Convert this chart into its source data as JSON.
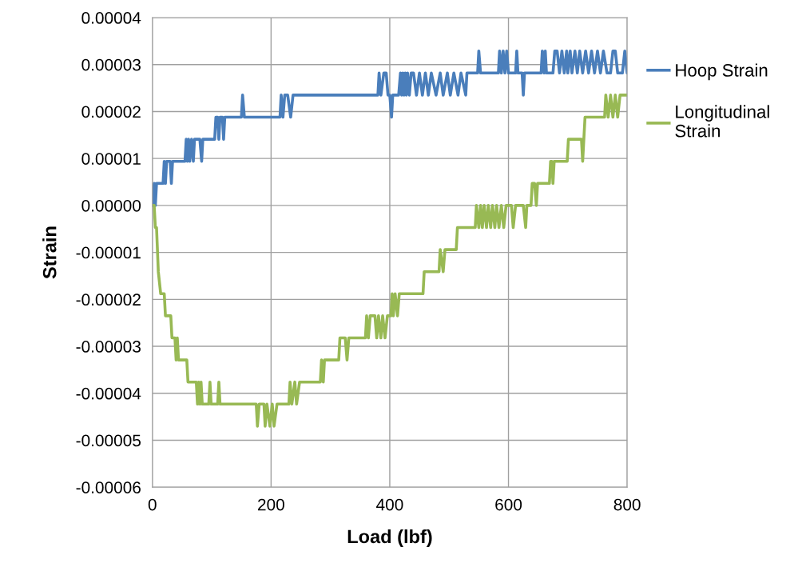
{
  "chart_data": {
    "type": "line",
    "xlabel": "Load (lbf)",
    "ylabel": "Strain",
    "xlim": [
      0,
      800
    ],
    "xticks": [
      0,
      200,
      400,
      600,
      800
    ],
    "ylim": [
      -6e-05,
      4e-05
    ],
    "yticks": [
      {
        "value": -6e-05,
        "label": "-0.00006"
      },
      {
        "value": -5e-05,
        "label": "-0.00005"
      },
      {
        "value": -4e-05,
        "label": "-0.00004"
      },
      {
        "value": -3e-05,
        "label": "-0.00003"
      },
      {
        "value": -2e-05,
        "label": "-0.00002"
      },
      {
        "value": -1e-05,
        "label": "-0.00001"
      },
      {
        "value": 0,
        "label": "0.00000"
      },
      {
        "value": 1e-05,
        "label": "0.00001"
      },
      {
        "value": 2e-05,
        "label": "0.00002"
      },
      {
        "value": 3e-05,
        "label": "0.00003"
      },
      {
        "value": 4e-05,
        "label": "0.00004"
      }
    ],
    "grid": true,
    "legend": "right",
    "marker": "none",
    "line_style": "solid",
    "series": [
      {
        "name": "Hoop Strain",
        "color": "#4a7ebb",
        "x": [
          0,
          3,
          5,
          7,
          18,
          20,
          22,
          24,
          30,
          32,
          34,
          55,
          57,
          59,
          61,
          63,
          66,
          69,
          71,
          80,
          83,
          85,
          105,
          107,
          110,
          112,
          114,
          118,
          120,
          122,
          150,
          152,
          155,
          215,
          217,
          220,
          223,
          228,
          233,
          237,
          380,
          382,
          385,
          390,
          394,
          397,
          400,
          403,
          405,
          415,
          418,
          420,
          422,
          424,
          426,
          428,
          430,
          433,
          436,
          440,
          445,
          450,
          455,
          460,
          465,
          470,
          478,
          485,
          490,
          497,
          502,
          508,
          515,
          520,
          528,
          530,
          548,
          550,
          553,
          583,
          585,
          588,
          591,
          594,
          597,
          600,
          612,
          614,
          616,
          623,
          625,
          627,
          655,
          657,
          660,
          662,
          664,
          675,
          678,
          682,
          686,
          690,
          694,
          698,
          700,
          704,
          707,
          712,
          716,
          720,
          725,
          730,
          735,
          740,
          745,
          750,
          755,
          760,
          766,
          772,
          776,
          780,
          784,
          792,
          796,
          800
        ],
        "values": [
          0,
          4.7e-06,
          0,
          4.7e-06,
          4.7e-06,
          9.4e-06,
          4.7e-06,
          9.4e-06,
          9.4e-06,
          4.7e-06,
          9.4e-06,
          9.4e-06,
          1.41e-05,
          9.4e-06,
          1.41e-05,
          9.4e-06,
          1.41e-05,
          9.4e-06,
          1.41e-05,
          1.41e-05,
          9.4e-06,
          1.41e-05,
          1.41e-05,
          1.88e-05,
          1.88e-05,
          1.41e-05,
          1.88e-05,
          1.88e-05,
          1.41e-05,
          1.88e-05,
          1.88e-05,
          2.35e-05,
          1.88e-05,
          1.88e-05,
          2.35e-05,
          1.88e-05,
          2.35e-05,
          2.35e-05,
          1.88e-05,
          2.35e-05,
          2.35e-05,
          2.82e-05,
          2.35e-05,
          2.82e-05,
          2.82e-05,
          2.35e-05,
          2.35e-05,
          1.88e-05,
          2.35e-05,
          2.35e-05,
          2.82e-05,
          2.35e-05,
          2.82e-05,
          2.35e-05,
          2.82e-05,
          2.35e-05,
          2.82e-05,
          2.35e-05,
          2.82e-05,
          2.82e-05,
          2.35e-05,
          2.82e-05,
          2.35e-05,
          2.82e-05,
          2.35e-05,
          2.82e-05,
          2.35e-05,
          2.82e-05,
          2.35e-05,
          2.82e-05,
          2.35e-05,
          2.82e-05,
          2.35e-05,
          2.82e-05,
          2.35e-05,
          2.82e-05,
          2.82e-05,
          3.29e-05,
          2.82e-05,
          2.82e-05,
          3.29e-05,
          2.82e-05,
          3.29e-05,
          2.82e-05,
          3.29e-05,
          2.82e-05,
          2.82e-05,
          3.29e-05,
          2.82e-05,
          2.82e-05,
          2.35e-05,
          2.82e-05,
          2.82e-05,
          3.29e-05,
          2.82e-05,
          3.29e-05,
          2.82e-05,
          2.82e-05,
          3.29e-05,
          3.29e-05,
          2.82e-05,
          3.29e-05,
          2.82e-05,
          3.29e-05,
          2.82e-05,
          3.29e-05,
          2.82e-05,
          3.29e-05,
          2.82e-05,
          3.29e-05,
          2.82e-05,
          3.29e-05,
          2.82e-05,
          3.29e-05,
          2.82e-05,
          3.29e-05,
          2.82e-05,
          3.29e-05,
          2.82e-05,
          2.82e-05,
          3.29e-05,
          3.29e-05,
          2.82e-05,
          2.82e-05,
          3.29e-05,
          2.82e-05
        ]
      },
      {
        "name": "Longitudinal\nStrain",
        "color": "#98b954",
        "x": [
          0,
          3,
          5,
          7,
          10,
          14,
          20,
          22,
          31,
          33,
          38,
          40,
          42,
          44,
          58,
          60,
          74,
          76,
          78,
          80,
          82,
          84,
          95,
          97,
          99,
          110,
          112,
          114,
          175,
          177,
          180,
          188,
          190,
          193,
          198,
          202,
          205,
          210,
          230,
          232,
          235,
          240,
          243,
          248,
          283,
          285,
          288,
          290,
          314,
          316,
          325,
          328,
          331,
          359,
          361,
          364,
          367,
          375,
          378,
          381,
          385,
          388,
          392,
          396,
          402,
          404,
          406,
          409,
          413,
          416,
          456,
          458,
          483,
          485,
          490,
          493,
          512,
          514,
          544,
          546,
          550,
          553,
          556,
          559,
          563,
          566,
          570,
          573,
          577,
          580,
          584,
          588,
          592,
          596,
          605,
          608,
          612,
          625,
          629,
          631,
          638,
          640,
          644,
          647,
          649,
          669,
          671,
          673,
          675,
          677,
          699,
          701,
          723,
          725,
          727,
          729,
          762,
          764,
          768,
          772,
          776,
          780,
          784,
          788,
          800
        ],
        "values": [
          0,
          0,
          -4.7e-06,
          -4.7e-06,
          -1.41e-05,
          -1.88e-05,
          -1.88e-05,
          -2.35e-05,
          -2.35e-05,
          -2.82e-05,
          -2.82e-05,
          -3.29e-05,
          -2.82e-05,
          -3.29e-05,
          -3.29e-05,
          -3.76e-05,
          -3.76e-05,
          -4.23e-05,
          -3.76e-05,
          -4.23e-05,
          -3.76e-05,
          -4.23e-05,
          -4.23e-05,
          -3.76e-05,
          -4.23e-05,
          -4.23e-05,
          -3.76e-05,
          -4.23e-05,
          -4.23e-05,
          -4.7e-05,
          -4.23e-05,
          -4.23e-05,
          -4.7e-05,
          -4.23e-05,
          -4.7e-05,
          -4.23e-05,
          -4.7e-05,
          -4.23e-05,
          -4.23e-05,
          -3.76e-05,
          -4.23e-05,
          -3.76e-05,
          -4.23e-05,
          -3.76e-05,
          -3.76e-05,
          -3.29e-05,
          -3.76e-05,
          -3.29e-05,
          -3.29e-05,
          -2.82e-05,
          -2.82e-05,
          -3.29e-05,
          -2.82e-05,
          -2.82e-05,
          -2.35e-05,
          -2.82e-05,
          -2.35e-05,
          -2.35e-05,
          -2.82e-05,
          -2.35e-05,
          -2.82e-05,
          -2.35e-05,
          -2.82e-05,
          -2.35e-05,
          -2.35e-05,
          -1.88e-05,
          -2.35e-05,
          -1.88e-05,
          -2.35e-05,
          -1.88e-05,
          -1.88e-05,
          -1.41e-05,
          -1.41e-05,
          -9.4e-06,
          -1.41e-05,
          -9.4e-06,
          -9.4e-06,
          -4.7e-06,
          -4.7e-06,
          0,
          -4.7e-06,
          0,
          -4.7e-06,
          0,
          -4.7e-06,
          0,
          -4.7e-06,
          0,
          -4.7e-06,
          0,
          -4.7e-06,
          0,
          -4.7e-06,
          0,
          0,
          -4.7e-06,
          0,
          0,
          -4.7e-06,
          0,
          0,
          4.7e-06,
          4.7e-06,
          0,
          4.7e-06,
          4.7e-06,
          9.4e-06,
          9.4e-06,
          4.7e-06,
          9.4e-06,
          9.4e-06,
          1.41e-05,
          1.41e-05,
          9.4e-06,
          1.41e-05,
          1.88e-05,
          1.88e-05,
          2.35e-05,
          1.88e-05,
          2.35e-05,
          1.88e-05,
          2.35e-05,
          1.88e-05,
          2.35e-05,
          2.35e-05
        ]
      }
    ]
  }
}
